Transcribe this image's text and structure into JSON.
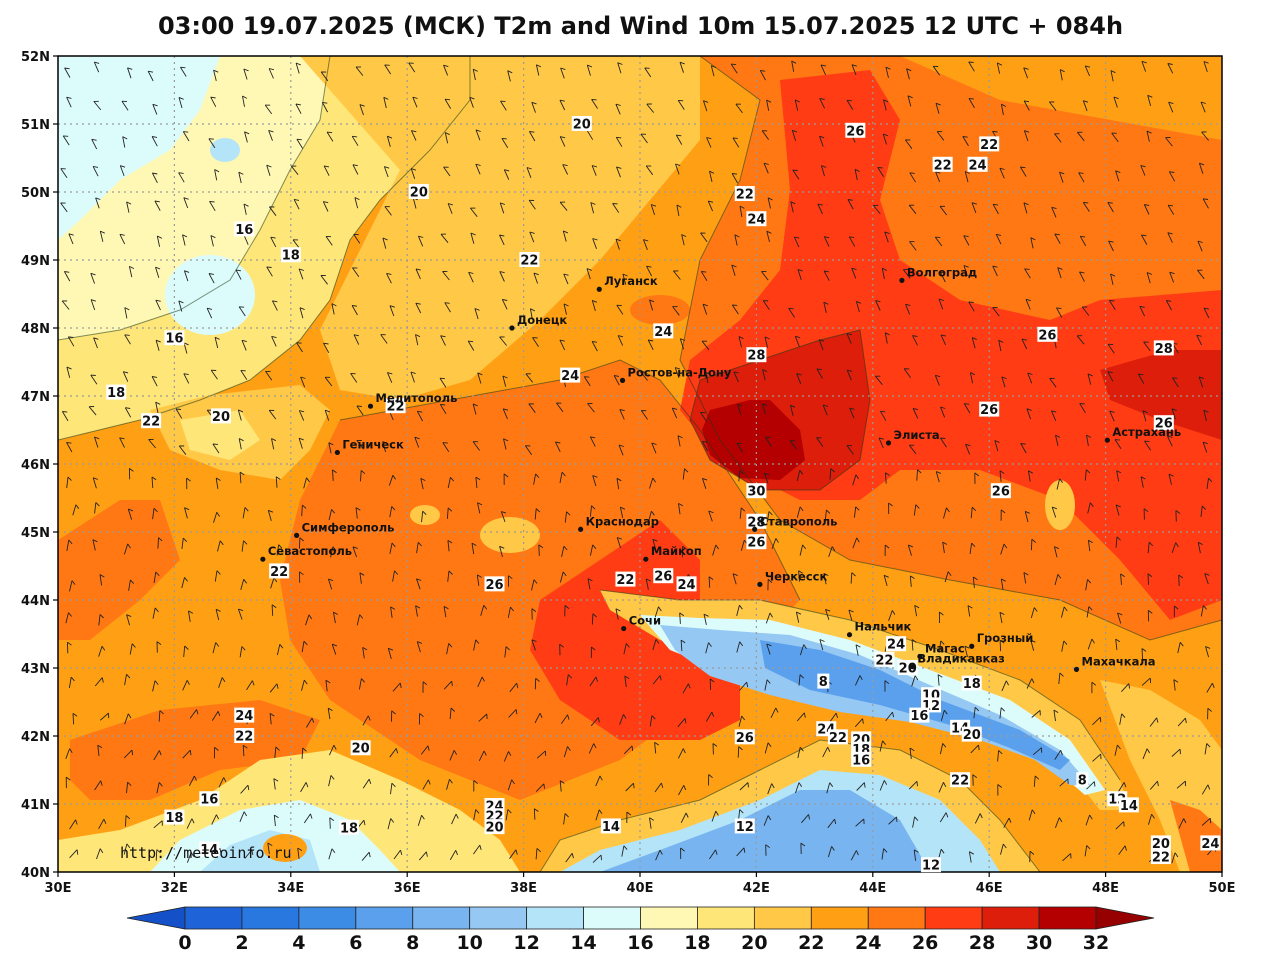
{
  "title": "03:00 19.07.2025 (МСК) T2m and Wind 10m 15.07.2025 12 UTC + 084h",
  "source_credit": "http://meteoinfo.ru",
  "lat_labels": [
    "52N",
    "51N",
    "50N",
    "49N",
    "48N",
    "47N",
    "46N",
    "45N",
    "44N",
    "43N",
    "42N",
    "41N",
    "40N"
  ],
  "lon_labels": [
    "30E",
    "32E",
    "34E",
    "36E",
    "38E",
    "40E",
    "42E",
    "44E",
    "46E",
    "48E",
    "50E"
  ],
  "colorbar": {
    "ticks": [
      "0",
      "2",
      "4",
      "6",
      "8",
      "10",
      "12",
      "14",
      "16",
      "18",
      "20",
      "22",
      "24",
      "26",
      "28",
      "30",
      "32"
    ],
    "colors": [
      "#1e64d8",
      "#2878e0",
      "#3c8ce6",
      "#5aa0ec",
      "#78b4f0",
      "#96c8f4",
      "#b4e4f8",
      "#dcfcfc",
      "#fff8b4",
      "#ffe678",
      "#ffc846",
      "#ffa014",
      "#ff7814",
      "#ff3c14",
      "#dc1e0a",
      "#b40000"
    ],
    "under_color": "#1450c8",
    "over_color": "#960000"
  },
  "cities": [
    {
      "name": "Волгоград",
      "lon": 44.5,
      "lat": 48.7
    },
    {
      "name": "Луганск",
      "lon": 39.3,
      "lat": 48.57
    },
    {
      "name": "Донецк",
      "lon": 37.8,
      "lat": 48.0
    },
    {
      "name": "Ростов-на-Дону",
      "lon": 39.7,
      "lat": 47.23
    },
    {
      "name": "Мелитополь",
      "lon": 35.37,
      "lat": 46.85
    },
    {
      "name": "Геническ",
      "lon": 34.8,
      "lat": 46.17
    },
    {
      "name": "Элиста",
      "lon": 44.27,
      "lat": 46.31
    },
    {
      "name": "Астрахань",
      "lon": 48.03,
      "lat": 46.35
    },
    {
      "name": "Краснодар",
      "lon": 38.98,
      "lat": 45.04
    },
    {
      "name": "Симферополь",
      "lon": 34.1,
      "lat": 44.95
    },
    {
      "name": "Севастополь",
      "lon": 33.52,
      "lat": 44.6
    },
    {
      "name": "Ставрополь",
      "lon": 41.97,
      "lat": 45.04
    },
    {
      "name": "Майкоп",
      "lon": 40.1,
      "lat": 44.6
    },
    {
      "name": "Черкесск",
      "lon": 42.06,
      "lat": 44.23
    },
    {
      "name": "Сочи",
      "lon": 39.72,
      "lat": 43.58
    },
    {
      "name": "Нальчик",
      "lon": 43.6,
      "lat": 43.49
    },
    {
      "name": "Магас",
      "lon": 44.81,
      "lat": 43.17
    },
    {
      "name": "Грозный",
      "lon": 45.7,
      "lat": 43.32
    },
    {
      "name": "Владикавказ",
      "lon": 44.68,
      "lat": 43.02
    },
    {
      "name": "Махачкала",
      "lon": 47.5,
      "lat": 42.98
    }
  ],
  "contour_labels": [
    {
      "t": "20",
      "lon": 39.0,
      "lat": 51.0
    },
    {
      "t": "26",
      "lon": 43.7,
      "lat": 50.9
    },
    {
      "t": "22",
      "lon": 46.0,
      "lat": 50.7
    },
    {
      "t": "22",
      "lon": 45.2,
      "lat": 50.4
    },
    {
      "t": "24",
      "lon": 45.8,
      "lat": 50.4
    },
    {
      "t": "20",
      "lon": 36.2,
      "lat": 50.0
    },
    {
      "t": "22",
      "lon": 41.8,
      "lat": 49.97
    },
    {
      "t": "24",
      "lon": 42.0,
      "lat": 49.6
    },
    {
      "t": "16",
      "lon": 33.2,
      "lat": 49.45
    },
    {
      "t": "18",
      "lon": 34.0,
      "lat": 49.07
    },
    {
      "t": "22",
      "lon": 38.1,
      "lat": 49.0
    },
    {
      "t": "24",
      "lon": 40.4,
      "lat": 47.95
    },
    {
      "t": "16",
      "lon": 32.0,
      "lat": 47.85
    },
    {
      "t": "26",
      "lon": 47.0,
      "lat": 47.9
    },
    {
      "t": "28",
      "lon": 42.0,
      "lat": 47.6
    },
    {
      "t": "28",
      "lon": 49.0,
      "lat": 47.7
    },
    {
      "t": "24",
      "lon": 38.8,
      "lat": 47.3
    },
    {
      "t": "18",
      "lon": 31.0,
      "lat": 47.05
    },
    {
      "t": "22",
      "lon": 35.8,
      "lat": 46.85
    },
    {
      "t": "26",
      "lon": 46.0,
      "lat": 46.8
    },
    {
      "t": "22",
      "lon": 31.6,
      "lat": 46.63
    },
    {
      "t": "20",
      "lon": 32.8,
      "lat": 46.7
    },
    {
      "t": "26",
      "lon": 49.0,
      "lat": 46.6
    },
    {
      "t": "30",
      "lon": 42.0,
      "lat": 45.6
    },
    {
      "t": "26",
      "lon": 46.2,
      "lat": 45.6
    },
    {
      "t": "28",
      "lon": 42.0,
      "lat": 45.15
    },
    {
      "t": "26",
      "lon": 42.0,
      "lat": 44.85
    },
    {
      "t": "22",
      "lon": 33.8,
      "lat": 44.42
    },
    {
      "t": "22",
      "lon": 39.75,
      "lat": 44.3
    },
    {
      "t": "26",
      "lon": 40.4,
      "lat": 44.35
    },
    {
      "t": "26",
      "lon": 37.5,
      "lat": 44.23
    },
    {
      "t": "24",
      "lon": 40.8,
      "lat": 44.23
    },
    {
      "t": "24",
      "lon": 44.4,
      "lat": 43.35
    },
    {
      "t": "22",
      "lon": 44.2,
      "lat": 43.12
    },
    {
      "t": "20",
      "lon": 44.6,
      "lat": 43.0
    },
    {
      "t": "8",
      "lon": 43.15,
      "lat": 42.8
    },
    {
      "t": "18",
      "lon": 45.7,
      "lat": 42.77
    },
    {
      "t": "10",
      "lon": 45.0,
      "lat": 42.6
    },
    {
      "t": "12",
      "lon": 45.0,
      "lat": 42.45
    },
    {
      "t": "16",
      "lon": 44.8,
      "lat": 42.3
    },
    {
      "t": "14",
      "lon": 45.5,
      "lat": 42.12
    },
    {
      "t": "20",
      "lon": 45.7,
      "lat": 42.02
    },
    {
      "t": "24",
      "lon": 33.2,
      "lat": 42.3
    },
    {
      "t": "24",
      "lon": 43.2,
      "lat": 42.1
    },
    {
      "t": "22",
      "lon": 33.2,
      "lat": 42.0
    },
    {
      "t": "26",
      "lon": 41.8,
      "lat": 41.98
    },
    {
      "t": "22",
      "lon": 43.4,
      "lat": 41.98
    },
    {
      "t": "20",
      "lon": 43.8,
      "lat": 41.95
    },
    {
      "t": "18",
      "lon": 43.8,
      "lat": 41.8
    },
    {
      "t": "16",
      "lon": 43.8,
      "lat": 41.65
    },
    {
      "t": "20",
      "lon": 35.2,
      "lat": 41.82
    },
    {
      "t": "22",
      "lon": 45.5,
      "lat": 41.35
    },
    {
      "t": "8",
      "lon": 47.6,
      "lat": 41.35
    },
    {
      "t": "16",
      "lon": 32.6,
      "lat": 41.07
    },
    {
      "t": "12",
      "lon": 48.2,
      "lat": 41.07
    },
    {
      "t": "14",
      "lon": 48.4,
      "lat": 40.98
    },
    {
      "t": "24",
      "lon": 37.5,
      "lat": 40.97
    },
    {
      "t": "22",
      "lon": 37.5,
      "lat": 40.82
    },
    {
      "t": "18",
      "lon": 32.0,
      "lat": 40.8
    },
    {
      "t": "20",
      "lon": 37.5,
      "lat": 40.66
    },
    {
      "t": "18",
      "lon": 35.0,
      "lat": 40.65
    },
    {
      "t": "14",
      "lon": 39.5,
      "lat": 40.67
    },
    {
      "t": "12",
      "lon": 41.8,
      "lat": 40.67
    },
    {
      "t": "14",
      "lon": 32.6,
      "lat": 40.33
    },
    {
      "t": "20",
      "lon": 48.95,
      "lat": 40.42
    },
    {
      "t": "24",
      "lon": 49.8,
      "lat": 40.42
    },
    {
      "t": "22",
      "lon": 48.95,
      "lat": 40.22
    },
    {
      "t": "12",
      "lon": 45.0,
      "lat": 40.1
    }
  ]
}
